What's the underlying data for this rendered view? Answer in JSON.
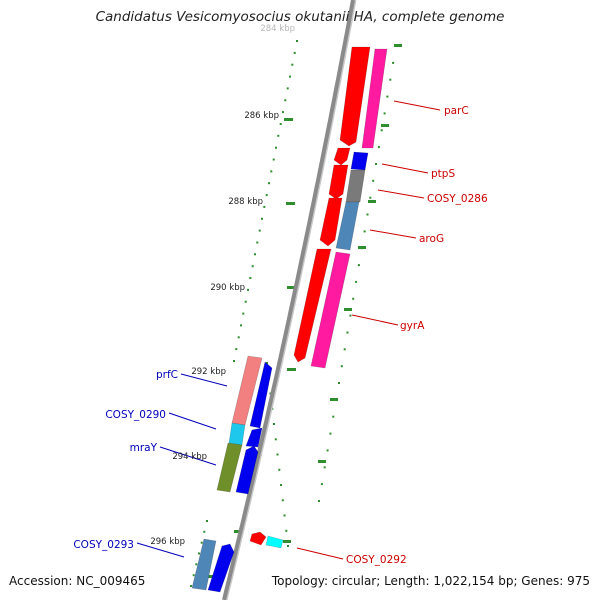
{
  "title": "Candidatus Vesicomyosocius okutanii HA, complete genome",
  "accession": "Accession: NC_009465",
  "summary": "Topology: circular; Length: 1,022,154 bp; Genes: 975",
  "colors": {
    "backbone": "#8a8a8a",
    "tick": "#2f8f2f",
    "label_red": "#cc0000",
    "label_blue": "#0000bb",
    "red": "#ff0000",
    "magenta": "#ff1aa0",
    "blue": "#0000ee",
    "gray": "#7a7a7a",
    "steel": "#4f86b8",
    "salmon": "#f28080",
    "cyan": "#1ec8ec",
    "olive": "#6f8f2a",
    "aqua": "#00ffff"
  },
  "scale_labels": [
    {
      "text": "284 kbp",
      "faded": true
    },
    {
      "text": "286 kbp"
    },
    {
      "text": "288 kbp"
    },
    {
      "text": "290 kbp"
    },
    {
      "text": "292 kbp"
    },
    {
      "text": "294 kbp"
    },
    {
      "text": "296 kbp"
    }
  ],
  "features": [
    {
      "label": "parC",
      "strand": "right"
    },
    {
      "label": "ptpS",
      "strand": "right"
    },
    {
      "label": "COSY_0286",
      "strand": "right"
    },
    {
      "label": "aroG",
      "strand": "right"
    },
    {
      "label": "gyrA",
      "strand": "right"
    },
    {
      "label": "COSY_0292",
      "strand": "right"
    },
    {
      "label": "prfC",
      "strand": "left"
    },
    {
      "label": "COSY_0290",
      "strand": "left"
    },
    {
      "label": "mraY",
      "strand": "left"
    },
    {
      "label": "COSY_0293",
      "strand": "left"
    }
  ]
}
